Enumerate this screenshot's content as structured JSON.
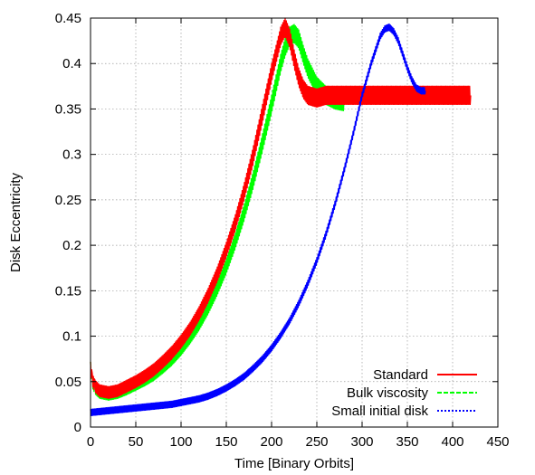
{
  "chart_data": {
    "type": "line",
    "title": "",
    "xlabel": "Time [Binary Orbits]",
    "ylabel": "Disk Eccentricity",
    "xlim": [
      0,
      450
    ],
    "ylim": [
      0,
      0.45
    ],
    "xticks": [
      "0",
      "50",
      "100",
      "150",
      "200",
      "250",
      "300",
      "350",
      "400",
      "450"
    ],
    "yticks": [
      "0",
      "0.05",
      "0.1",
      "0.15",
      "0.2",
      "0.25",
      "0.3",
      "0.35",
      "0.4",
      "0.45"
    ],
    "grid": true,
    "legend_position": "bottom-right",
    "series": [
      {
        "name": "Standard",
        "color": "#ff0000",
        "style": "solid",
        "x": [
          0,
          2,
          5,
          10,
          20,
          30,
          40,
          50,
          60,
          70,
          80,
          90,
          100,
          110,
          120,
          130,
          140,
          150,
          160,
          170,
          180,
          190,
          200,
          205,
          210,
          215,
          220,
          225,
          230,
          235,
          240,
          250,
          260,
          280,
          300,
          320,
          340,
          360,
          380,
          400,
          420
        ],
        "y": [
          0.065,
          0.052,
          0.045,
          0.04,
          0.038,
          0.04,
          0.045,
          0.05,
          0.056,
          0.063,
          0.072,
          0.082,
          0.094,
          0.108,
          0.125,
          0.145,
          0.168,
          0.195,
          0.225,
          0.26,
          0.3,
          0.345,
          0.39,
          0.41,
          0.43,
          0.44,
          0.428,
          0.405,
          0.385,
          0.372,
          0.365,
          0.362,
          0.365,
          0.365,
          0.365,
          0.365,
          0.365,
          0.365,
          0.365,
          0.365,
          0.365
        ]
      },
      {
        "name": "Bulk viscosity",
        "color": "#00ff00",
        "style": "dashed",
        "x": [
          0,
          2,
          5,
          10,
          20,
          30,
          40,
          50,
          60,
          70,
          80,
          90,
          100,
          110,
          120,
          130,
          140,
          150,
          160,
          170,
          180,
          190,
          200,
          210,
          215,
          220,
          225,
          230,
          235,
          240,
          245,
          250,
          260,
          270,
          280
        ],
        "y": [
          0.065,
          0.05,
          0.043,
          0.038,
          0.036,
          0.038,
          0.042,
          0.047,
          0.052,
          0.058,
          0.066,
          0.075,
          0.086,
          0.099,
          0.114,
          0.132,
          0.153,
          0.177,
          0.205,
          0.237,
          0.273,
          0.313,
          0.355,
          0.4,
          0.418,
          0.43,
          0.433,
          0.427,
          0.41,
          0.395,
          0.385,
          0.375,
          0.365,
          0.36,
          0.358
        ]
      },
      {
        "name": "Small initial disk",
        "color": "#0000ff",
        "style": "dotted",
        "x": [
          0,
          10,
          20,
          30,
          40,
          50,
          60,
          70,
          80,
          90,
          100,
          110,
          120,
          130,
          140,
          150,
          160,
          170,
          180,
          190,
          200,
          210,
          220,
          230,
          240,
          250,
          260,
          270,
          280,
          290,
          300,
          310,
          320,
          325,
          330,
          335,
          340,
          345,
          350,
          355,
          360,
          365,
          370
        ],
        "y": [
          0.016,
          0.017,
          0.018,
          0.019,
          0.02,
          0.021,
          0.022,
          0.023,
          0.024,
          0.025,
          0.027,
          0.029,
          0.031,
          0.034,
          0.038,
          0.043,
          0.049,
          0.056,
          0.065,
          0.075,
          0.087,
          0.101,
          0.117,
          0.136,
          0.158,
          0.183,
          0.212,
          0.245,
          0.282,
          0.322,
          0.365,
          0.4,
          0.43,
          0.438,
          0.44,
          0.435,
          0.425,
          0.41,
          0.395,
          0.382,
          0.373,
          0.37,
          0.37
        ]
      }
    ]
  }
}
